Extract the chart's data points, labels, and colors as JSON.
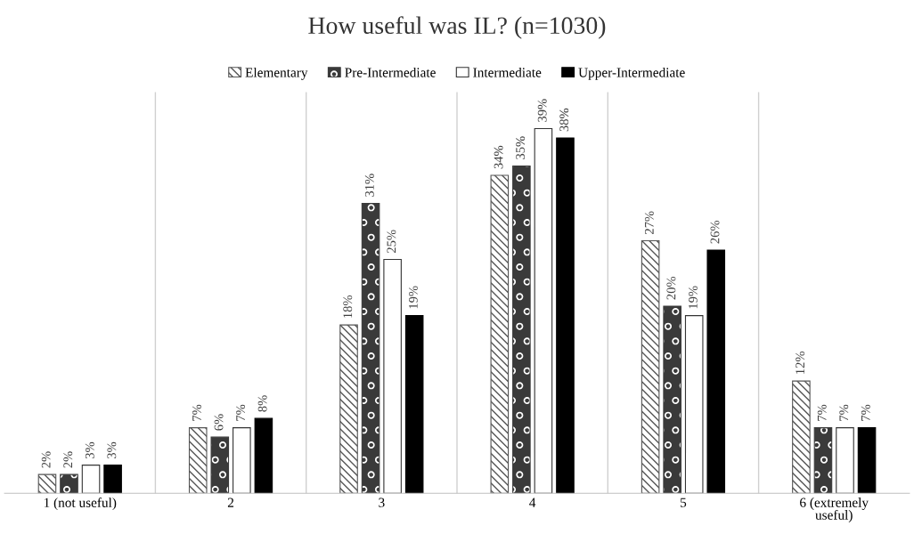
{
  "chart_data": {
    "type": "bar",
    "title": "How useful was IL? (n=1030)",
    "categories": [
      "1 (not useful)",
      "2",
      "3",
      "4",
      "5",
      "6 (extremely\nuseful)"
    ],
    "series": [
      {
        "name": "Elementary",
        "color": "#555555",
        "values": [
          2,
          7,
          18,
          34,
          27,
          12
        ],
        "value_labels": [
          "2%",
          "7%",
          "18%",
          "34%",
          "27%",
          "12%"
        ]
      },
      {
        "name": "Pre-Intermediate",
        "color": "#3a3a3a",
        "values": [
          2,
          6,
          31,
          35,
          20,
          7
        ],
        "value_labels": [
          "2%",
          "6%",
          "31%",
          "35%",
          "20%",
          "7%"
        ]
      },
      {
        "name": "Intermediate",
        "color": "#ffffff",
        "values": [
          3,
          7,
          25,
          39,
          19,
          7
        ],
        "value_labels": [
          "3%",
          "7%",
          "25%",
          "39%",
          "19%",
          "7%"
        ]
      },
      {
        "name": "Upper-Intermediate",
        "color": "#000000",
        "values": [
          3,
          8,
          19,
          38,
          26,
          7
        ],
        "value_labels": [
          "3%",
          "8%",
          "19%",
          "38%",
          "26%",
          "7%"
        ]
      }
    ],
    "grid": "x",
    "legend": "top"
  }
}
